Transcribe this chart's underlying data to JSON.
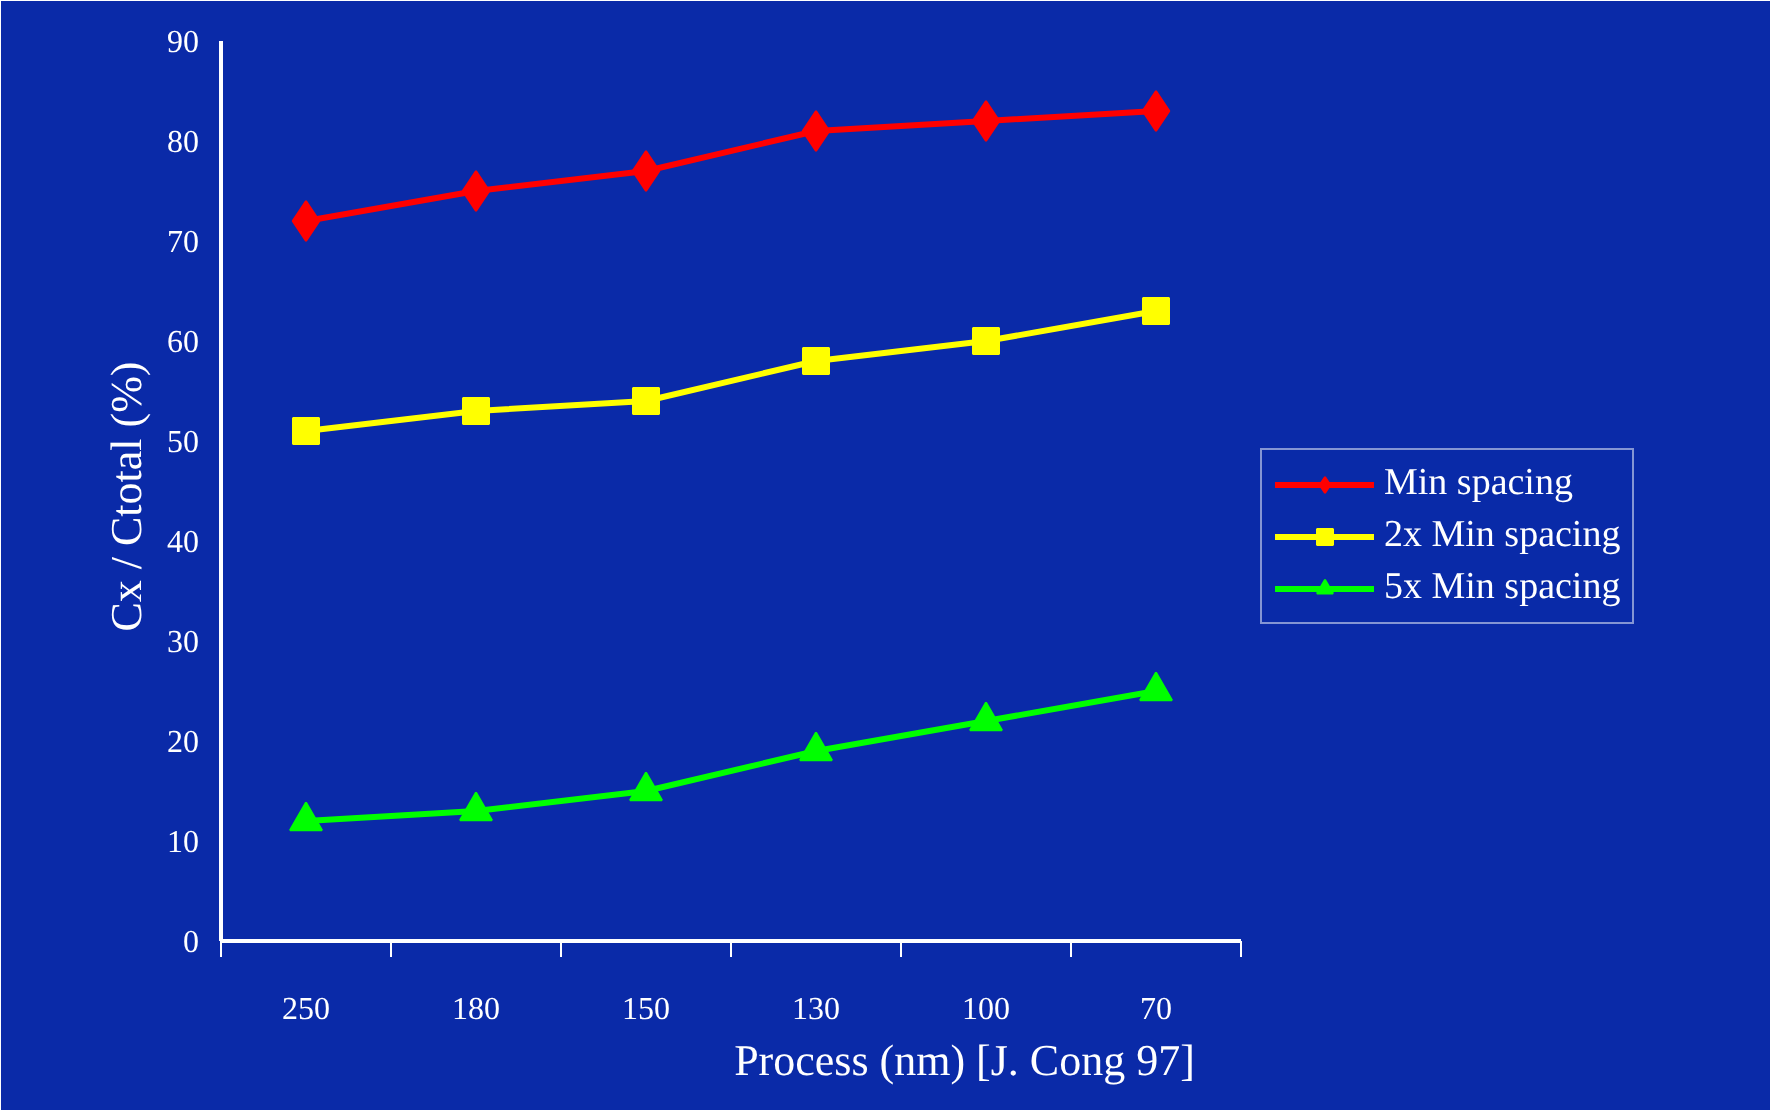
{
  "chart_data": {
    "type": "line",
    "xlabel": "Process (nm)    [J. Cong 97]",
    "ylabel": "Cx / Ctotal  (%)",
    "categories": [
      "250",
      "180",
      "150",
      "130",
      "100",
      "70"
    ],
    "ylim": [
      0,
      90
    ],
    "yticks": [
      0,
      10,
      20,
      30,
      40,
      50,
      60,
      70,
      80,
      90
    ],
    "grid": false,
    "legend": "right",
    "line_style": "solid",
    "series": [
      {
        "name": "Min spacing",
        "color": "#ff0000",
        "marker": "diamond",
        "values": [
          72,
          75,
          77,
          81,
          82,
          83
        ]
      },
      {
        "name": "2x Min spacing",
        "color": "#ffff00",
        "marker": "square",
        "values": [
          51,
          53,
          54,
          58,
          60,
          63
        ]
      },
      {
        "name": "5x Min spacing",
        "color": "#00ff00",
        "marker": "triangle",
        "values": [
          12,
          13,
          15,
          19,
          22,
          25
        ]
      }
    ]
  }
}
